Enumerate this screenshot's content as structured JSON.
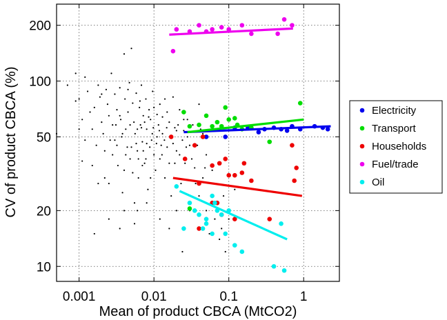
{
  "chart_data": {
    "type": "scatter",
    "title": "",
    "xlabel": "Mean of product CBCA (MtCO2)",
    "ylabel": "CV of product CBCA (%)",
    "x_scale": "log",
    "y_scale": "log",
    "xlim": [
      0.0005,
      3
    ],
    "ylim": [
      8.3,
      260
    ],
    "grid": true,
    "legend_position": "right",
    "x_ticks": [
      {
        "value": 0.001,
        "label": "0.001"
      },
      {
        "value": 0.01,
        "label": "0.01"
      },
      {
        "value": 0.1,
        "label": "0.1"
      },
      {
        "value": 1,
        "label": "1"
      }
    ],
    "y_ticks": [
      {
        "value": 10,
        "label": "10"
      },
      {
        "value": 20,
        "label": "20"
      },
      {
        "value": 50,
        "label": "50"
      },
      {
        "value": 100,
        "label": "100"
      },
      {
        "value": 200,
        "label": "200"
      }
    ],
    "background_series": {
      "color": "#000000",
      "points": [
        [
          0.0007,
          95
        ],
        [
          0.0009,
          110
        ],
        [
          0.0009,
          78
        ],
        [
          0.001,
          80
        ],
        [
          0.0011,
          62
        ],
        [
          0.0011,
          37
        ],
        [
          0.0012,
          105
        ],
        [
          0.0013,
          88
        ],
        [
          0.0014,
          68
        ],
        [
          0.0015,
          55
        ],
        [
          0.0016,
          72
        ],
        [
          0.0017,
          45
        ],
        [
          0.0018,
          95
        ],
        [
          0.0019,
          82
        ],
        [
          0.002,
          60
        ],
        [
          0.0021,
          52
        ],
        [
          0.0022,
          30
        ],
        [
          0.0023,
          90
        ],
        [
          0.0024,
          75
        ],
        [
          0.0025,
          65
        ],
        [
          0.0026,
          48
        ],
        [
          0.0027,
          110
        ],
        [
          0.0028,
          40
        ],
        [
          0.003,
          85
        ],
        [
          0.0031,
          58
        ],
        [
          0.0032,
          70
        ],
        [
          0.0033,
          35
        ],
        [
          0.0035,
          92
        ],
        [
          0.0036,
          62
        ],
        [
          0.0037,
          50
        ],
        [
          0.0038,
          25
        ],
        [
          0.004,
          140
        ],
        [
          0.0041,
          80
        ],
        [
          0.0042,
          55
        ],
        [
          0.0044,
          44
        ],
        [
          0.0045,
          68
        ],
        [
          0.0047,
          98
        ],
        [
          0.0048,
          38
        ],
        [
          0.005,
          150
        ],
        [
          0.0052,
          76
        ],
        [
          0.0054,
          60
        ],
        [
          0.0056,
          52
        ],
        [
          0.0058,
          86
        ],
        [
          0.006,
          42
        ],
        [
          0.0062,
          30
        ],
        [
          0.0064,
          72
        ],
        [
          0.0066,
          58
        ],
        [
          0.0068,
          95
        ],
        [
          0.007,
          47
        ],
        [
          0.0072,
          65
        ],
        [
          0.0075,
          36
        ],
        [
          0.0078,
          80
        ],
        [
          0.008,
          55
        ],
        [
          0.0083,
          26
        ],
        [
          0.0086,
          70
        ],
        [
          0.009,
          62
        ],
        [
          0.0093,
          48
        ],
        [
          0.0096,
          88
        ],
        [
          0.01,
          40
        ],
        [
          0.0105,
          33
        ],
        [
          0.011,
          66
        ],
        [
          0.0115,
          58
        ],
        [
          0.012,
          75
        ],
        [
          0.0125,
          45
        ],
        [
          0.013,
          52
        ],
        [
          0.014,
          30
        ],
        [
          0.015,
          68
        ],
        [
          0.016,
          60
        ],
        [
          0.017,
          24
        ],
        [
          0.018,
          82
        ],
        [
          0.019,
          56
        ],
        [
          0.02,
          42
        ],
        [
          0.022,
          70
        ],
        [
          0.024,
          48
        ],
        [
          0.026,
          36
        ],
        [
          0.028,
          62
        ],
        [
          0.03,
          45
        ],
        [
          0.033,
          58
        ],
        [
          0.036,
          28
        ],
        [
          0.04,
          75
        ],
        [
          0.045,
          52
        ],
        [
          0.05,
          40
        ],
        [
          0.06,
          33
        ],
        [
          0.07,
          22
        ],
        [
          0.08,
          16
        ],
        [
          0.09,
          12
        ],
        [
          0.1,
          18
        ],
        [
          0.12,
          26
        ],
        [
          0.001,
          55
        ],
        [
          0.0015,
          35
        ],
        [
          0.002,
          85
        ],
        [
          0.0025,
          28
        ],
        [
          0.003,
          48
        ],
        [
          0.0035,
          65
        ],
        [
          0.004,
          33
        ],
        [
          0.0045,
          90
        ],
        [
          0.005,
          44
        ],
        [
          0.0055,
          22
        ],
        [
          0.006,
          55
        ],
        [
          0.0065,
          78
        ],
        [
          0.007,
          35
        ],
        [
          0.0075,
          60
        ],
        [
          0.008,
          46
        ],
        [
          0.0085,
          64
        ],
        [
          0.009,
          30
        ],
        [
          0.0095,
          52
        ],
        [
          0.01,
          72
        ],
        [
          0.011,
          50
        ],
        [
          0.012,
          38
        ],
        [
          0.013,
          64
        ],
        [
          0.014,
          80
        ],
        [
          0.015,
          44
        ],
        [
          0.017,
          50
        ],
        [
          0.019,
          36
        ],
        [
          0.021,
          58
        ],
        [
          0.023,
          28
        ],
        [
          0.025,
          54
        ],
        [
          0.027,
          44
        ],
        [
          0.03,
          20
        ],
        [
          0.035,
          34
        ],
        [
          0.04,
          24
        ],
        [
          0.045,
          30
        ],
        [
          0.05,
          20
        ],
        [
          0.055,
          15
        ],
        [
          0.065,
          18
        ],
        [
          0.075,
          14
        ],
        [
          0.085,
          24
        ],
        [
          0.0012,
          48
        ],
        [
          0.0018,
          28
        ],
        [
          0.0022,
          42
        ],
        [
          0.0028,
          58
        ],
        [
          0.0032,
          45
        ],
        [
          0.0038,
          52
        ],
        [
          0.0042,
          40
        ],
        [
          0.0048,
          58
        ],
        [
          0.0052,
          32
        ],
        [
          0.0058,
          46
        ],
        [
          0.0062,
          38
        ],
        [
          0.0068,
          56
        ],
        [
          0.0072,
          42
        ],
        [
          0.0078,
          38
        ],
        [
          0.0088,
          44
        ],
        [
          0.0098,
          56
        ],
        [
          0.0108,
          46
        ],
        [
          0.0118,
          54
        ],
        [
          0.0128,
          40
        ],
        [
          0.0138,
          48
        ],
        [
          0.0148,
          56
        ],
        [
          0.016,
          36
        ],
        [
          0.018,
          46
        ],
        [
          0.02,
          54
        ],
        [
          0.022,
          40
        ],
        [
          0.025,
          62
        ],
        [
          0.028,
          50
        ],
        [
          0.032,
          38
        ],
        [
          0.038,
          45
        ],
        [
          0.042,
          55
        ],
        [
          0.048,
          34
        ],
        [
          0.0025,
          18
        ],
        [
          0.004,
          20
        ],
        [
          0.006,
          20
        ],
        [
          0.008,
          22
        ],
        [
          0.012,
          18
        ],
        [
          0.016,
          16
        ],
        [
          0.02,
          20
        ],
        [
          0.024,
          12
        ],
        [
          0.0035,
          16
        ],
        [
          0.0055,
          17
        ],
        [
          0.0016,
          15
        ],
        [
          0.0005,
          52
        ]
      ]
    },
    "series": [
      {
        "name": "Electricity",
        "color": "#0000ee",
        "points": [
          [
            0.05,
            50
          ],
          [
            0.09,
            50
          ],
          [
            0.12,
            56
          ],
          [
            0.18,
            56
          ],
          [
            0.25,
            53
          ],
          [
            0.3,
            55
          ],
          [
            0.4,
            56
          ],
          [
            0.5,
            55
          ],
          [
            0.6,
            54
          ],
          [
            0.7,
            57
          ],
          [
            0.9,
            55
          ],
          [
            1.4,
            57
          ],
          [
            1.8,
            56
          ],
          [
            2.1,
            55
          ]
        ],
        "fit": [
          [
            0.025,
            53
          ],
          [
            2.3,
            57
          ]
        ]
      },
      {
        "name": "Transport",
        "color": "#00dd00",
        "points": [
          [
            0.025,
            68
          ],
          [
            0.03,
            57
          ],
          [
            0.04,
            58
          ],
          [
            0.05,
            65
          ],
          [
            0.06,
            57
          ],
          [
            0.07,
            60
          ],
          [
            0.08,
            57
          ],
          [
            0.09,
            72
          ],
          [
            0.1,
            62
          ],
          [
            0.12,
            63
          ],
          [
            0.13,
            58
          ],
          [
            0.15,
            55
          ],
          [
            0.2,
            56
          ],
          [
            0.35,
            47
          ],
          [
            0.9,
            76
          ],
          [
            0.03,
            20.5
          ]
        ],
        "fit": [
          [
            0.028,
            53
          ],
          [
            1,
            62
          ]
        ]
      },
      {
        "name": "Households",
        "color": "#ee0000",
        "points": [
          [
            0.017,
            50
          ],
          [
            0.026,
            38
          ],
          [
            0.035,
            45
          ],
          [
            0.04,
            28
          ],
          [
            0.045,
            50
          ],
          [
            0.06,
            35
          ],
          [
            0.07,
            22
          ],
          [
            0.075,
            36
          ],
          [
            0.09,
            38
          ],
          [
            0.1,
            31
          ],
          [
            0.12,
            31
          ],
          [
            0.15,
            32
          ],
          [
            0.16,
            36
          ],
          [
            0.2,
            29
          ],
          [
            0.04,
            16
          ],
          [
            0.06,
            22
          ],
          [
            0.08,
            19
          ],
          [
            0.12,
            18
          ],
          [
            0.35,
            18
          ],
          [
            0.7,
            45
          ],
          [
            0.75,
            29
          ],
          [
            0.8,
            34
          ]
        ],
        "fit": [
          [
            0.018,
            30
          ],
          [
            0.95,
            24
          ]
        ]
      },
      {
        "name": "Fuel/trade",
        "color": "#ee00ee",
        "points": [
          [
            0.02,
            190
          ],
          [
            0.03,
            185
          ],
          [
            0.04,
            200
          ],
          [
            0.05,
            185
          ],
          [
            0.06,
            190
          ],
          [
            0.08,
            195
          ],
          [
            0.1,
            190
          ],
          [
            0.15,
            200
          ],
          [
            0.2,
            180
          ],
          [
            0.45,
            180
          ],
          [
            0.55,
            215
          ],
          [
            0.7,
            200
          ],
          [
            0.018,
            145
          ]
        ],
        "fit": [
          [
            0.016,
            178
          ],
          [
            0.72,
            192
          ]
        ]
      },
      {
        "name": "Oil",
        "color": "#00eeee",
        "points": [
          [
            0.02,
            27
          ],
          [
            0.025,
            16
          ],
          [
            0.03,
            22
          ],
          [
            0.035,
            20
          ],
          [
            0.04,
            19
          ],
          [
            0.045,
            16
          ],
          [
            0.05,
            18
          ],
          [
            0.06,
            24
          ],
          [
            0.065,
            22
          ],
          [
            0.07,
            20
          ],
          [
            0.08,
            19
          ],
          [
            0.09,
            15
          ],
          [
            0.1,
            20
          ],
          [
            0.12,
            13
          ],
          [
            0.15,
            12
          ],
          [
            0.4,
            10
          ],
          [
            0.5,
            17
          ],
          [
            0.55,
            9.5
          ],
          [
            0.06,
            15
          ],
          [
            0.05,
            17
          ]
        ],
        "fit": [
          [
            0.022,
            25.5
          ],
          [
            0.6,
            14
          ]
        ]
      }
    ]
  }
}
